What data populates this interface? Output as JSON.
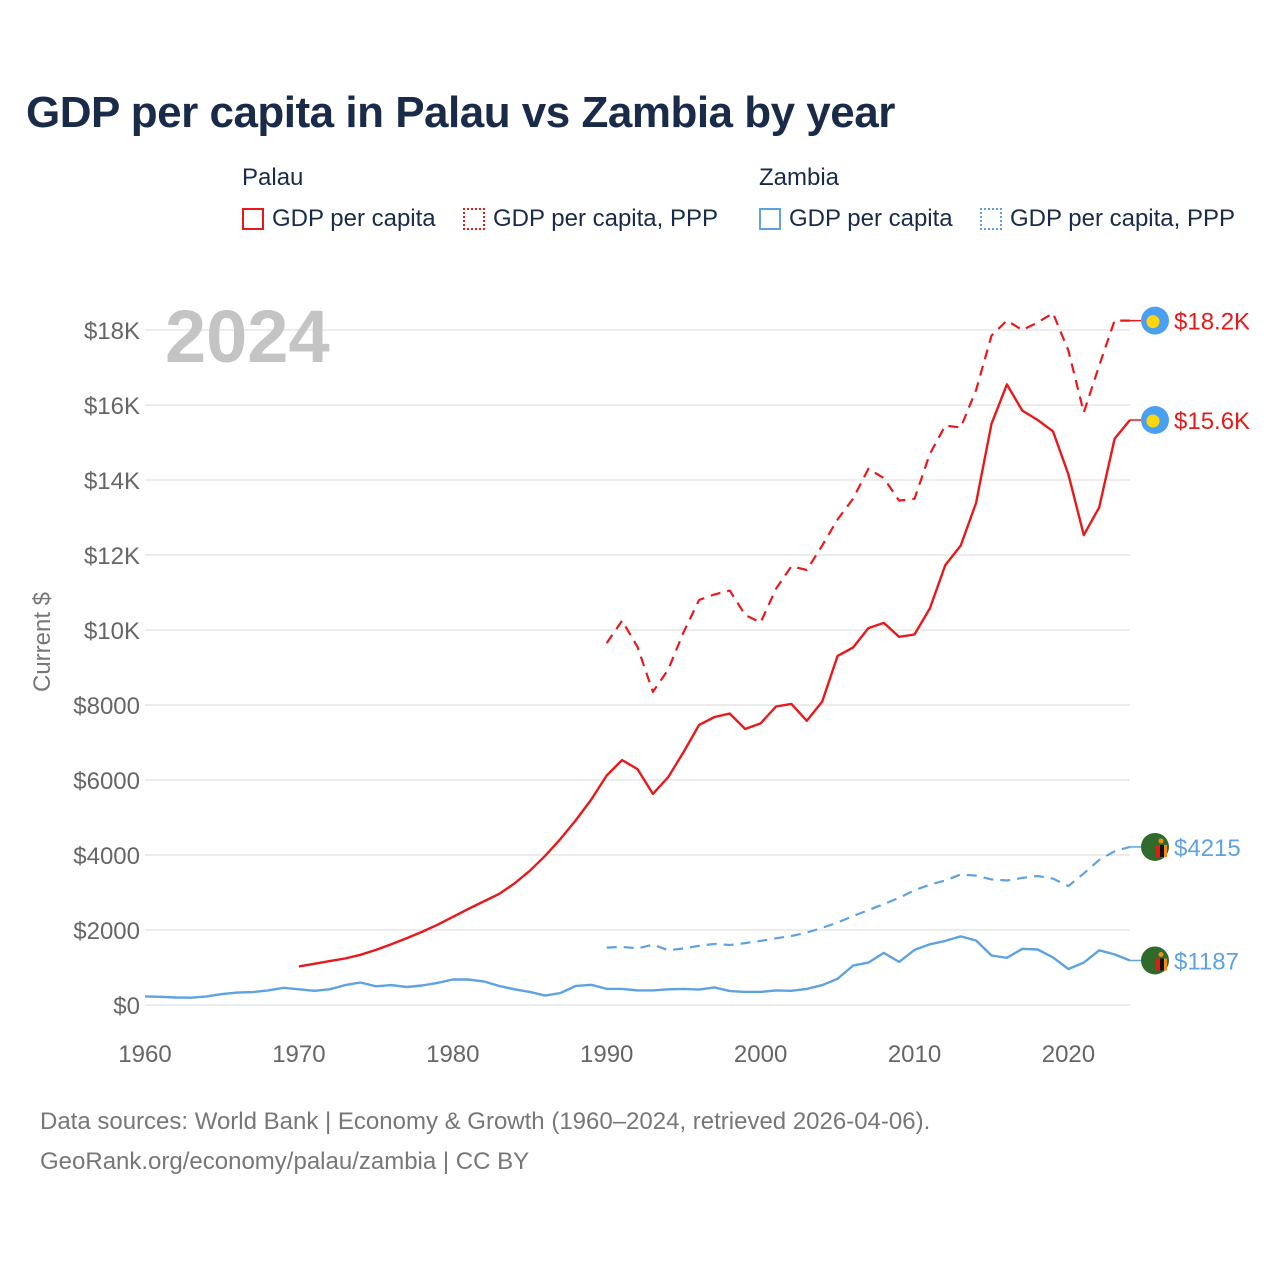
{
  "title": "GDP per capita in Palau vs Zambia by year",
  "legend": {
    "groups": [
      {
        "name": "Palau",
        "items": [
          {
            "label": "GDP per capita",
            "style": "solid",
            "color": "#e8191b"
          },
          {
            "label": "GDP per capita, PPP",
            "style": "dotted",
            "color": "#e8191b"
          }
        ]
      },
      {
        "name": "Zambia",
        "items": [
          {
            "label": "GDP per capita",
            "style": "solid",
            "color": "#5ea3e0"
          },
          {
            "label": "GDP per capita, PPP",
            "style": "dotted",
            "color": "#5ea3e0"
          }
        ]
      }
    ]
  },
  "footer": {
    "line1": "Data sources: World Bank | Economy & Growth (1960–2024, retrieved 2026-04-06).",
    "line2": "GeoRank.org/economy/palau/zambia | CC BY"
  },
  "chart_data": {
    "type": "line",
    "year_watermark": "2024",
    "ylabel": "Current $",
    "xlim": [
      1960,
      2024
    ],
    "ylim": [
      0,
      18000
    ],
    "x_ticks": [
      1960,
      1970,
      1980,
      1990,
      2000,
      2010,
      2020
    ],
    "x_tick_labels": [
      "1960",
      "1970",
      "1980",
      "1990",
      "2000",
      "2010",
      "2020"
    ],
    "y_ticks": [
      0,
      2000,
      4000,
      6000,
      8000,
      10000,
      12000,
      14000,
      16000,
      18000
    ],
    "y_tick_labels": [
      "$0",
      "$2000",
      "$4000",
      "$6000",
      "$8000",
      "$10K",
      "$12K",
      "$14K",
      "$16K",
      "$18K"
    ],
    "grid": true,
    "series": [
      {
        "name": "Palau GDP per capita",
        "country": "Palau",
        "color": "#e8191b",
        "dash": "solid",
        "end_label": "$15.6K",
        "x": [
          1970,
          1971,
          1972,
          1973,
          1974,
          1975,
          1976,
          1977,
          1978,
          1979,
          1980,
          1981,
          1982,
          1983,
          1984,
          1985,
          1986,
          1987,
          1988,
          1989,
          1990,
          1991,
          1992,
          1993,
          1994,
          1995,
          1996,
          1997,
          1998,
          1999,
          2000,
          2001,
          2002,
          2003,
          2004,
          2005,
          2006,
          2007,
          2008,
          2009,
          2010,
          2011,
          2012,
          2013,
          2014,
          2015,
          2016,
          2017,
          2018,
          2019,
          2020,
          2021,
          2022,
          2023,
          2024
        ],
        "y": [
          1030,
          1100,
          1170,
          1240,
          1340,
          1470,
          1620,
          1780,
          1950,
          2140,
          2350,
          2560,
          2760,
          2960,
          3240,
          3580,
          3980,
          4430,
          4930,
          5480,
          6120,
          6530,
          6290,
          5630,
          6080,
          6750,
          7470,
          7680,
          7770,
          7360,
          7510,
          7960,
          8030,
          7580,
          8090,
          9310,
          9530,
          10050,
          10190,
          9820,
          9880,
          10580,
          11730,
          12250,
          13390,
          15500,
          16550,
          15850,
          15600,
          15300,
          14150,
          12530,
          13270,
          15100,
          15600
        ]
      },
      {
        "name": "Palau GDP per capita, PPP",
        "country": "Palau",
        "color": "#e8191b",
        "dash": "dashed",
        "end_label": "$18.2K",
        "x": [
          1990,
          1991,
          1992,
          1993,
          1994,
          1995,
          1996,
          1997,
          1998,
          1999,
          2000,
          2001,
          2002,
          2003,
          2004,
          2005,
          2006,
          2007,
          2008,
          2009,
          2010,
          2011,
          2012,
          2013,
          2014,
          2015,
          2016,
          2017,
          2018,
          2019,
          2020,
          2021,
          2022,
          2023,
          2024
        ],
        "y": [
          9650,
          10250,
          9550,
          8350,
          8950,
          9950,
          10800,
          10950,
          11050,
          10400,
          10200,
          11100,
          11700,
          11600,
          12250,
          12950,
          13500,
          14300,
          14050,
          13450,
          13500,
          14700,
          15450,
          15400,
          16400,
          17850,
          18250,
          18000,
          18200,
          18450,
          17450,
          15800,
          17050,
          18250,
          18250
        ]
      },
      {
        "name": "Zambia GDP per capita",
        "country": "Zambia",
        "color": "#5ea3e0",
        "dash": "solid",
        "end_label": "$1187",
        "x": [
          1960,
          1961,
          1962,
          1963,
          1964,
          1965,
          1966,
          1967,
          1968,
          1969,
          1970,
          1971,
          1972,
          1973,
          1974,
          1975,
          1976,
          1977,
          1978,
          1979,
          1980,
          1981,
          1982,
          1983,
          1984,
          1985,
          1986,
          1987,
          1988,
          1989,
          1990,
          1991,
          1992,
          1993,
          1994,
          1995,
          1996,
          1997,
          1998,
          1999,
          2000,
          2001,
          2002,
          2003,
          2004,
          2005,
          2006,
          2007,
          2008,
          2009,
          2010,
          2011,
          2012,
          2013,
          2014,
          2015,
          2016,
          2017,
          2018,
          2019,
          2020,
          2021,
          2022,
          2023,
          2024
        ],
        "y": [
          230,
          220,
          200,
          195,
          230,
          290,
          330,
          345,
          390,
          460,
          420,
          380,
          420,
          530,
          600,
          500,
          530,
          480,
          520,
          590,
          680,
          680,
          630,
          510,
          420,
          350,
          250,
          320,
          510,
          540,
          430,
          430,
          390,
          390,
          420,
          430,
          410,
          470,
          370,
          350,
          350,
          390,
          380,
          430,
          530,
          700,
          1050,
          1130,
          1390,
          1150,
          1470,
          1620,
          1710,
          1830,
          1720,
          1320,
          1260,
          1500,
          1480,
          1270,
          960,
          1130,
          1460,
          1350,
          1187
        ]
      },
      {
        "name": "Zambia GDP per capita, PPP",
        "country": "Zambia",
        "color": "#5ea3e0",
        "dash": "dashed",
        "end_label": "$4215",
        "x": [
          1990,
          1991,
          1992,
          1993,
          1994,
          1995,
          1996,
          1997,
          1998,
          1999,
          2000,
          2001,
          2002,
          2003,
          2004,
          2005,
          2006,
          2007,
          2008,
          2009,
          2010,
          2011,
          2012,
          2013,
          2014,
          2015,
          2016,
          2017,
          2018,
          2019,
          2020,
          2021,
          2022,
          2023,
          2024
        ],
        "y": [
          1530,
          1550,
          1510,
          1610,
          1460,
          1510,
          1580,
          1630,
          1600,
          1650,
          1710,
          1780,
          1840,
          1930,
          2060,
          2200,
          2370,
          2530,
          2690,
          2860,
          3060,
          3210,
          3320,
          3480,
          3450,
          3350,
          3320,
          3390,
          3440,
          3370,
          3170,
          3510,
          3870,
          4100,
          4215
        ]
      }
    ]
  }
}
